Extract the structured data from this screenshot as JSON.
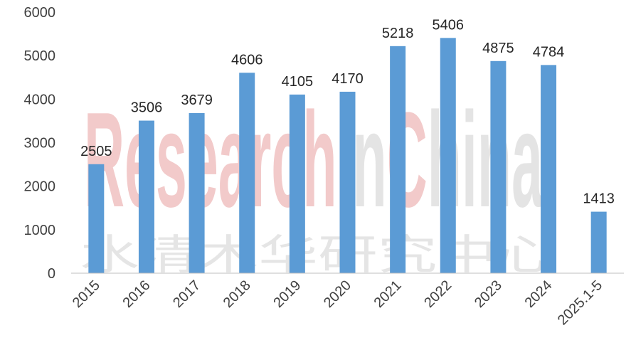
{
  "chart_data": {
    "type": "bar",
    "categories": [
      "2015",
      "2016",
      "2017",
      "2018",
      "2019",
      "2020",
      "2021",
      "2022",
      "2023",
      "2024",
      "2025.1-5"
    ],
    "values": [
      2505,
      3506,
      3679,
      4606,
      4105,
      4170,
      5218,
      5406,
      4875,
      4784,
      1413
    ],
    "title": "",
    "xlabel": "",
    "ylabel": "",
    "ylim": [
      0,
      6000
    ],
    "yticks": [
      0,
      1000,
      2000,
      3000,
      4000,
      5000,
      6000
    ],
    "grid": false,
    "legend": "none",
    "bar_color": "#5b9bd5"
  },
  "watermark": {
    "brand_research": "Research",
    "brand_in": "In",
    "brand_c": "C",
    "brand_hina": "hina",
    "chinese": "水清木华研究中心",
    "red_color": "#e8a0a0",
    "gray_color": "#d9d9d9"
  }
}
